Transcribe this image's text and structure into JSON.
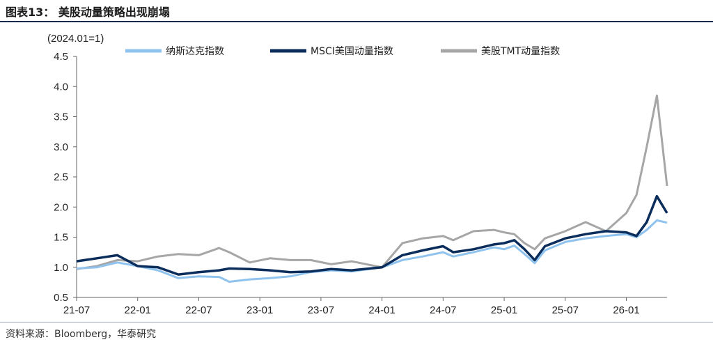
{
  "figure": {
    "title": "图表13：  美股动量策略出现崩塌",
    "source": "资料来源：Bloomberg，华泰研究"
  },
  "chart_data": {
    "type": "line",
    "unit_label": "(2024.01=1)",
    "ylim": [
      0.5,
      4.5
    ],
    "yticks": [
      "0.5",
      "1.0",
      "1.5",
      "2.0",
      "2.5",
      "3.0",
      "3.5",
      "4.0",
      "4.5"
    ],
    "x_range": [
      "2021-07",
      "2026-05"
    ],
    "xticks": [
      "21-07",
      "22-01",
      "22-07",
      "23-01",
      "23-07",
      "24-01",
      "24-07",
      "25-01",
      "25-07",
      "26-01"
    ],
    "grid": false,
    "legend_position": "top",
    "colors": [
      "#8fc3ee",
      "#0b2d5b",
      "#a6a6a6"
    ],
    "series": [
      {
        "name": "纳斯达克指数",
        "x": [
          "2021-07",
          "2021-09",
          "2021-11",
          "2022-01",
          "2022-03",
          "2022-05",
          "2022-07",
          "2022-09",
          "2022-10",
          "2022-12",
          "2023-02",
          "2023-04",
          "2023-06",
          "2023-08",
          "2023-10",
          "2024-01",
          "2024-03",
          "2024-05",
          "2024-07",
          "2024-08",
          "2024-10",
          "2024-12",
          "2025-01",
          "2025-02",
          "2025-03",
          "2025-04",
          "2025-05",
          "2025-07",
          "2025-09",
          "2025-11",
          "2026-01",
          "2026-02",
          "2026-03",
          "2026-04",
          "2026-05"
        ],
        "values": [
          0.98,
          1.0,
          1.08,
          1.02,
          0.95,
          0.82,
          0.85,
          0.84,
          0.76,
          0.8,
          0.82,
          0.85,
          0.92,
          0.95,
          0.93,
          1.0,
          1.12,
          1.18,
          1.25,
          1.18,
          1.25,
          1.33,
          1.3,
          1.36,
          1.22,
          1.07,
          1.28,
          1.42,
          1.48,
          1.52,
          1.55,
          1.5,
          1.62,
          1.78,
          1.74
        ]
      },
      {
        "name": "MSCI美国动量指数",
        "x": [
          "2021-07",
          "2021-09",
          "2021-11",
          "2022-01",
          "2022-03",
          "2022-05",
          "2022-07",
          "2022-09",
          "2022-10",
          "2022-12",
          "2023-02",
          "2023-04",
          "2023-06",
          "2023-08",
          "2023-10",
          "2024-01",
          "2024-03",
          "2024-05",
          "2024-07",
          "2024-08",
          "2024-10",
          "2024-12",
          "2025-01",
          "2025-02",
          "2025-03",
          "2025-04",
          "2025-05",
          "2025-07",
          "2025-09",
          "2025-11",
          "2026-01",
          "2026-02",
          "2026-03",
          "2026-04",
          "2026-05"
        ],
        "values": [
          1.1,
          1.15,
          1.2,
          1.02,
          1.0,
          0.88,
          0.92,
          0.95,
          0.98,
          0.97,
          0.95,
          0.92,
          0.93,
          0.97,
          0.95,
          1.0,
          1.2,
          1.28,
          1.35,
          1.25,
          1.3,
          1.38,
          1.4,
          1.45,
          1.3,
          1.12,
          1.35,
          1.48,
          1.55,
          1.6,
          1.58,
          1.52,
          1.75,
          2.18,
          1.9
        ]
      },
      {
        "name": "美股TMT动量指数",
        "x": [
          "2021-07",
          "2021-09",
          "2021-11",
          "2022-01",
          "2022-03",
          "2022-05",
          "2022-07",
          "2022-09",
          "2022-10",
          "2022-12",
          "2023-02",
          "2023-04",
          "2023-06",
          "2023-08",
          "2023-10",
          "2024-01",
          "2024-03",
          "2024-05",
          "2024-07",
          "2024-08",
          "2024-10",
          "2024-12",
          "2025-01",
          "2025-02",
          "2025-03",
          "2025-04",
          "2025-05",
          "2025-07",
          "2025-09",
          "2025-11",
          "2026-01",
          "2026-02",
          "2026-03",
          "2026-04",
          "2026-05"
        ],
        "values": [
          0.97,
          1.02,
          1.12,
          1.1,
          1.18,
          1.22,
          1.2,
          1.32,
          1.25,
          1.08,
          1.15,
          1.12,
          1.12,
          1.05,
          1.1,
          1.0,
          1.4,
          1.48,
          1.52,
          1.45,
          1.6,
          1.62,
          1.58,
          1.55,
          1.4,
          1.3,
          1.48,
          1.6,
          1.75,
          1.6,
          1.9,
          2.2,
          3.0,
          3.85,
          2.35
        ]
      }
    ]
  }
}
